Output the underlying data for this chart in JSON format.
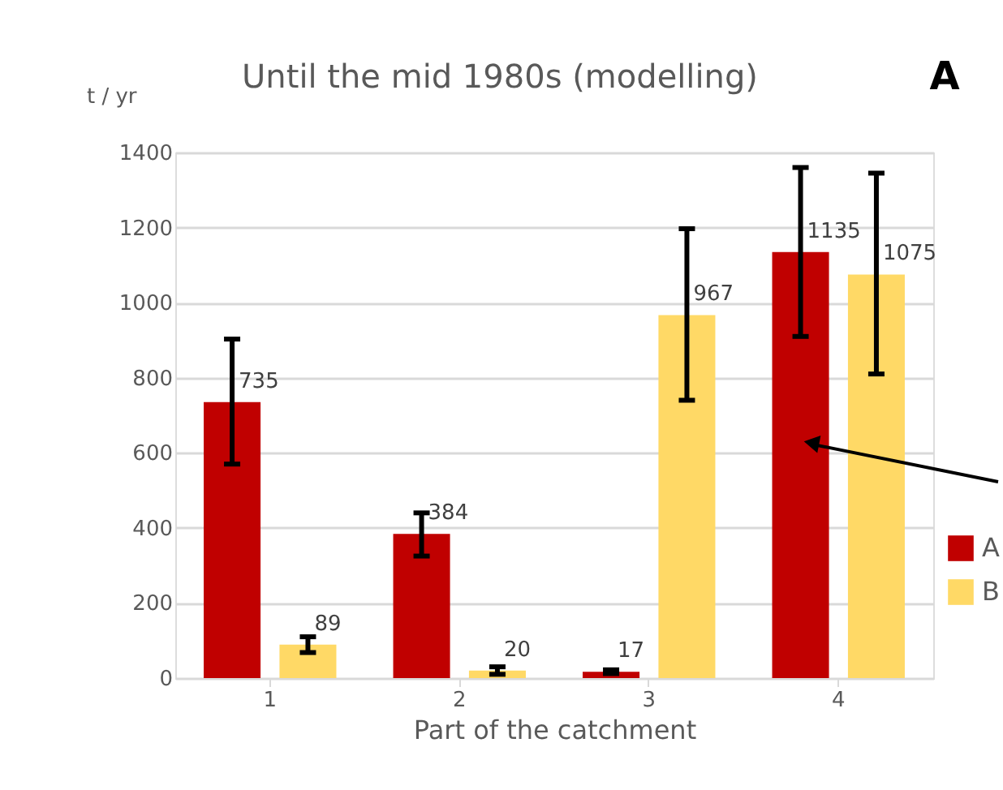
{
  "chart_data": {
    "type": "bar",
    "title": "Until the mid 1980s (modelling)",
    "xlabel": "Part of the catchment",
    "ylabel": "t / yr",
    "categories": [
      "1",
      "2",
      "3",
      "4"
    ],
    "series": [
      {
        "name": "A",
        "color": "#c00000",
        "values": [
          735,
          384,
          17,
          1135
        ],
        "errors": [
          [
            570,
            903
          ],
          [
            325,
            440
          ],
          [
            12,
            22
          ],
          [
            910,
            1360
          ]
        ]
      },
      {
        "name": "B",
        "color": "#ffd966",
        "values": [
          89,
          20,
          967,
          1075
        ],
        "errors": [
          [
            68,
            110
          ],
          [
            10,
            30
          ],
          [
            740,
            1197
          ],
          [
            810,
            1345
          ]
        ]
      }
    ],
    "ylim": [
      0,
      1400
    ],
    "yticks": [
      0,
      200,
      400,
      600,
      800,
      1000,
      1200,
      1400
    ],
    "grid": "y",
    "legend": "bottom right",
    "data_labels": true,
    "annotations": [
      "A"
    ]
  }
}
